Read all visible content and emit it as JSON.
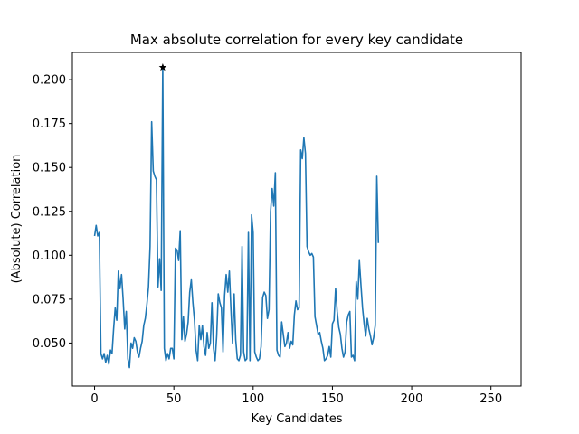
{
  "chart_data": {
    "type": "line",
    "title": "Max absolute correlation for every key candidate",
    "xlabel": "Key Candidates",
    "ylabel": "(Absolute) Correlation",
    "xlim": [
      -14,
      269
    ],
    "ylim": [
      0.0255,
      0.2155
    ],
    "xticks": [
      0,
      50,
      100,
      150,
      200,
      250
    ],
    "yticks": [
      0.05,
      0.075,
      0.1,
      0.125,
      0.15,
      0.175,
      0.2
    ],
    "ytick_labels": [
      "0.050",
      "0.075",
      "0.100",
      "0.125",
      "0.150",
      "0.175",
      "0.200"
    ],
    "grid": false,
    "line_color": "#1f77b4",
    "marker": {
      "x": 43,
      "y": 0.207,
      "symbol": "star",
      "color": "#000000"
    },
    "series": [
      {
        "x_start": 0,
        "values": [
          0.111,
          0.117,
          0.111,
          0.113,
          0.044,
          0.041,
          0.044,
          0.039,
          0.043,
          0.038,
          0.046,
          0.044,
          0.058,
          0.07,
          0.063,
          0.091,
          0.081,
          0.089,
          0.075,
          0.058,
          0.068,
          0.041,
          0.036,
          0.05,
          0.047,
          0.053,
          0.051,
          0.045,
          0.042,
          0.047,
          0.051,
          0.06,
          0.064,
          0.072,
          0.082,
          0.105,
          0.176,
          0.148,
          0.145,
          0.143,
          0.082,
          0.098,
          0.08,
          0.207,
          0.047,
          0.04,
          0.044,
          0.041,
          0.047,
          0.047,
          0.041,
          0.104,
          0.103,
          0.097,
          0.114,
          0.052,
          0.065,
          0.051,
          0.055,
          0.062,
          0.079,
          0.086,
          0.073,
          0.063,
          0.046,
          0.04,
          0.06,
          0.052,
          0.06,
          0.048,
          0.043,
          0.056,
          0.047,
          0.05,
          0.073,
          0.047,
          0.04,
          0.054,
          0.078,
          0.073,
          0.07,
          0.045,
          0.077,
          0.089,
          0.079,
          0.091,
          0.069,
          0.05,
          0.078,
          0.052,
          0.041,
          0.04,
          0.043,
          0.105,
          0.045,
          0.04,
          0.041,
          0.113,
          0.04,
          0.123,
          0.113,
          0.045,
          0.042,
          0.04,
          0.041,
          0.048,
          0.076,
          0.079,
          0.077,
          0.064,
          0.069,
          0.125,
          0.138,
          0.128,
          0.147,
          0.046,
          0.043,
          0.042,
          0.062,
          0.055,
          0.048,
          0.05,
          0.056,
          0.047,
          0.051,
          0.049,
          0.066,
          0.074,
          0.069,
          0.07,
          0.16,
          0.155,
          0.167,
          0.158,
          0.105,
          0.102,
          0.1,
          0.101,
          0.099,
          0.065,
          0.06,
          0.055,
          0.056,
          0.051,
          0.047,
          0.04,
          0.041,
          0.043,
          0.048,
          0.042,
          0.061,
          0.063,
          0.081,
          0.068,
          0.059,
          0.055,
          0.047,
          0.042,
          0.045,
          0.062,
          0.066,
          0.068,
          0.042,
          0.043,
          0.04,
          0.085,
          0.075,
          0.097,
          0.083,
          0.07,
          0.061,
          0.054,
          0.064,
          0.058,
          0.054,
          0.049,
          0.053,
          0.06,
          0.145,
          0.107
        ]
      }
    ]
  }
}
